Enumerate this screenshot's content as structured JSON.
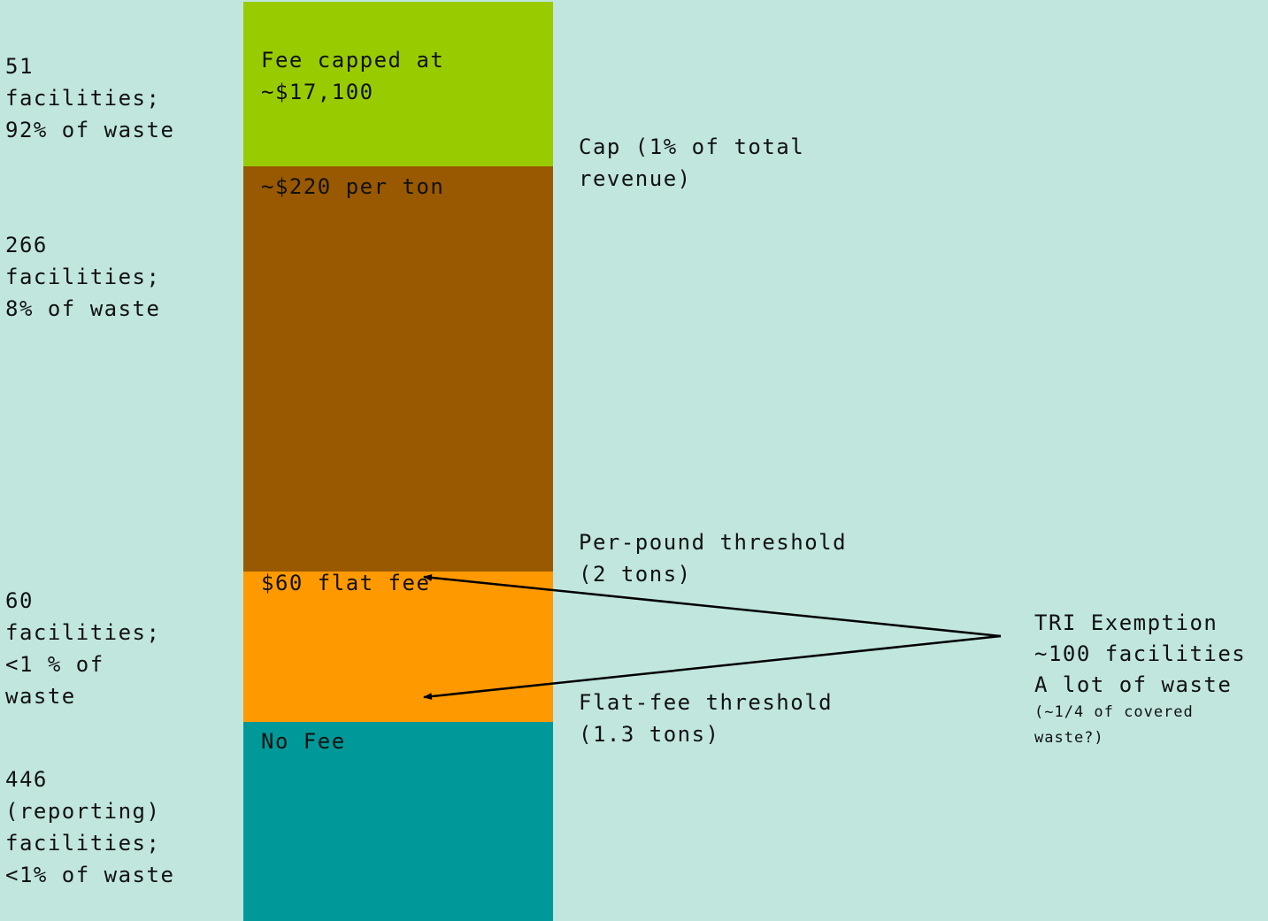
{
  "colors": {
    "background": "#c0e6de",
    "cap_band": "#99cc00",
    "per_ton_band": "#995900",
    "flat_fee_band": "#ff9900",
    "no_fee_band": "#009999"
  },
  "bands": {
    "cap": "Fee capped at\n~$17,100",
    "per_ton": "~$220 per ton",
    "flat_fee": "$60 flat fee",
    "no_fee": "No Fee"
  },
  "left_labels": {
    "group1": "51\nfacilities;\n92% of waste",
    "group2": "266\nfacilities;\n8% of waste",
    "group3": "60\nfacilities;\n<1 % of\nwaste",
    "group4": "446\n(reporting)\nfacilities;\n<1% of waste"
  },
  "thresholds": {
    "cap": "Cap (1% of total\nrevenue)",
    "per_pound": "Per-pound threshold\n(2 tons)",
    "flat_fee": "Flat-fee threshold\n(1.3 tons)"
  },
  "exemption": {
    "title": "TRI Exemption",
    "count": "~100 facilities",
    "waste": "A lot of waste",
    "note": "(~1/4 of covered\nwaste?)"
  }
}
